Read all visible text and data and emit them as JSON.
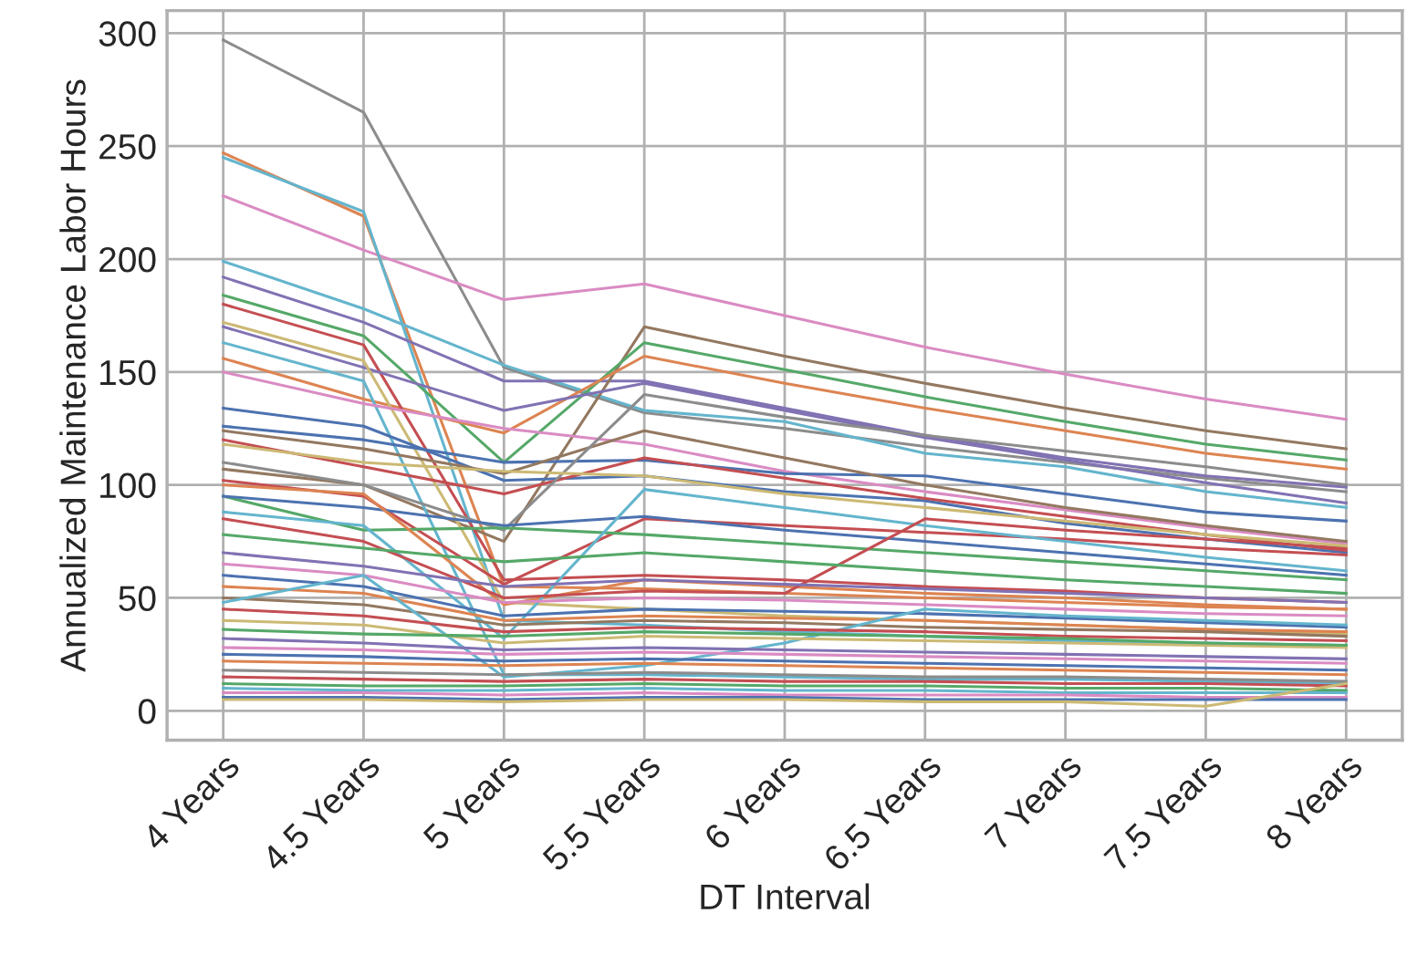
{
  "chart_data": {
    "type": "line",
    "xlabel": "DT Interval",
    "ylabel": "Annualized Maintenance Labor Hours",
    "categories": [
      "4 Years",
      "4.5 Years",
      "5 Years",
      "5.5 Years",
      "6 Years",
      "6.5 Years",
      "7 Years",
      "7.5 Years",
      "8 Years"
    ],
    "ylim": [
      -13,
      310
    ],
    "yticks": [
      0,
      50,
      100,
      150,
      200,
      250,
      300
    ],
    "grid": true,
    "line_style": "solid",
    "series": [
      {
        "color": "#8c8c8c",
        "values": [
          297,
          265,
          152,
          132,
          125,
          117,
          110,
          103,
          97
        ]
      },
      {
        "color": "#da8bc3",
        "values": [
          228,
          204,
          182,
          189,
          175,
          161,
          149,
          138,
          129
        ]
      },
      {
        "color": "#dd8452",
        "values": [
          247,
          219,
          55,
          54,
          52,
          50,
          48,
          46,
          45
        ]
      },
      {
        "color": "#64b5cd",
        "values": [
          245,
          221,
          40,
          38,
          35,
          33,
          31,
          30,
          29
        ]
      },
      {
        "color": "#64b5cd",
        "values": [
          199,
          178,
          153,
          133,
          128,
          114,
          108,
          97,
          90
        ]
      },
      {
        "color": "#8172b3",
        "values": [
          192,
          172,
          146,
          146,
          134,
          122,
          112,
          104,
          99
        ]
      },
      {
        "color": "#937860",
        "values": [
          107,
          100,
          75,
          170,
          157,
          145,
          134,
          124,
          116
        ]
      },
      {
        "color": "#55a868",
        "values": [
          184,
          166,
          110,
          163,
          151,
          139,
          128,
          118,
          111
        ]
      },
      {
        "color": "#dd8452",
        "values": [
          156,
          138,
          123,
          157,
          145,
          134,
          124,
          114,
          107
        ]
      },
      {
        "color": "#c44e52",
        "values": [
          180,
          162,
          58,
          60,
          58,
          55,
          53,
          50,
          48
        ]
      },
      {
        "color": "#8172b3",
        "values": [
          170,
          152,
          133,
          145,
          133,
          121,
          111,
          101,
          92
        ]
      },
      {
        "color": "#ccb974",
        "values": [
          172,
          155,
          48,
          45,
          42,
          40,
          38,
          36,
          34
        ]
      },
      {
        "color": "#64b5cd",
        "values": [
          163,
          146,
          16,
          16,
          15,
          14,
          14,
          13,
          12
        ]
      },
      {
        "color": "#da8bc3",
        "values": [
          150,
          136,
          125,
          118,
          106,
          97,
          89,
          81,
          74
        ]
      },
      {
        "color": "#4c72b0",
        "values": [
          134,
          126,
          102,
          104,
          97,
          93,
          83,
          76,
          70
        ]
      },
      {
        "color": "#4c72b0",
        "values": [
          126,
          120,
          110,
          111,
          105,
          104,
          96,
          88,
          84
        ]
      },
      {
        "color": "#937860",
        "values": [
          124,
          116,
          105,
          124,
          112,
          100,
          90,
          82,
          75
        ]
      },
      {
        "color": "#c44e52",
        "values": [
          120,
          108,
          96,
          112,
          103,
          94,
          86,
          78,
          71
        ]
      },
      {
        "color": "#8c8c8c",
        "values": [
          110,
          100,
          80,
          140,
          130,
          122,
          115,
          108,
          100
        ]
      },
      {
        "color": "#c44e52",
        "values": [
          102,
          95,
          56,
          85,
          82,
          79,
          76,
          72,
          69
        ]
      },
      {
        "color": "#55a868",
        "values": [
          95,
          80,
          81,
          78,
          74,
          70,
          66,
          62,
          58
        ]
      },
      {
        "color": "#4c72b0",
        "values": [
          95,
          90,
          82,
          86,
          80,
          75,
          70,
          65,
          60
        ]
      },
      {
        "color": "#dd8452",
        "values": [
          100,
          96,
          47,
          58,
          55,
          52,
          50,
          47,
          45
        ]
      },
      {
        "color": "#64b5cd",
        "values": [
          88,
          82,
          32,
          98,
          90,
          82,
          75,
          68,
          62
        ]
      },
      {
        "color": "#c44e52",
        "values": [
          85,
          75,
          50,
          53,
          52,
          85,
          80,
          76,
          72
        ]
      },
      {
        "color": "#ccb974",
        "values": [
          118,
          110,
          106,
          104,
          96,
          90,
          84,
          78,
          73
        ]
      },
      {
        "color": "#8172b3",
        "values": [
          70,
          64,
          55,
          58,
          56,
          54,
          52,
          50,
          48
        ]
      },
      {
        "color": "#55a868",
        "values": [
          78,
          72,
          66,
          70,
          66,
          62,
          58,
          55,
          52
        ]
      },
      {
        "color": "#da8bc3",
        "values": [
          65,
          60,
          48,
          50,
          49,
          47,
          45,
          43,
          42
        ]
      },
      {
        "color": "#4c72b0",
        "values": [
          60,
          55,
          42,
          45,
          44,
          43,
          41,
          39,
          37
        ]
      },
      {
        "color": "#dd8452",
        "values": [
          55,
          52,
          40,
          42,
          41,
          40,
          38,
          36,
          35
        ]
      },
      {
        "color": "#937860",
        "values": [
          50,
          47,
          38,
          40,
          39,
          37,
          36,
          35,
          33
        ]
      },
      {
        "color": "#64b5cd",
        "values": [
          48,
          60,
          15,
          20,
          30,
          45,
          42,
          40,
          38
        ]
      },
      {
        "color": "#c44e52",
        "values": [
          45,
          42,
          35,
          37,
          36,
          35,
          33,
          32,
          31
        ]
      },
      {
        "color": "#ccb974",
        "values": [
          40,
          38,
          30,
          33,
          32,
          31,
          30,
          29,
          28
        ]
      },
      {
        "color": "#55a868",
        "values": [
          36,
          34,
          33,
          35,
          34,
          33,
          32,
          30,
          29
        ]
      },
      {
        "color": "#8172b3",
        "values": [
          32,
          30,
          27,
          28,
          27,
          26,
          25,
          24,
          23
        ]
      },
      {
        "color": "#da8bc3",
        "values": [
          28,
          27,
          25,
          26,
          25,
          24,
          23,
          22,
          21
        ]
      },
      {
        "color": "#4c72b0",
        "values": [
          25,
          24,
          22,
          23,
          22,
          21,
          20,
          19,
          18
        ]
      },
      {
        "color": "#dd8452",
        "values": [
          22,
          21,
          20,
          21,
          20,
          19,
          18,
          17,
          16
        ]
      },
      {
        "color": "#8c8c8c",
        "values": [
          18,
          17,
          16,
          17,
          16,
          15,
          15,
          14,
          13
        ]
      },
      {
        "color": "#c44e52",
        "values": [
          15,
          14,
          13,
          14,
          13,
          13,
          12,
          12,
          11
        ]
      },
      {
        "color": "#55a868",
        "values": [
          12,
          11,
          11,
          12,
          11,
          11,
          10,
          10,
          9
        ]
      },
      {
        "color": "#64b5cd",
        "values": [
          10,
          9,
          9,
          10,
          9,
          9,
          8,
          8,
          8
        ]
      },
      {
        "color": "#da8bc3",
        "values": [
          8,
          8,
          7,
          8,
          7,
          7,
          7,
          6,
          6
        ]
      },
      {
        "color": "#4c72b0",
        "values": [
          6,
          6,
          5,
          6,
          6,
          5,
          5,
          5,
          5
        ]
      },
      {
        "color": "#ccb974",
        "values": [
          5,
          5,
          4,
          5,
          5,
          4,
          4,
          2,
          12
        ]
      }
    ]
  }
}
